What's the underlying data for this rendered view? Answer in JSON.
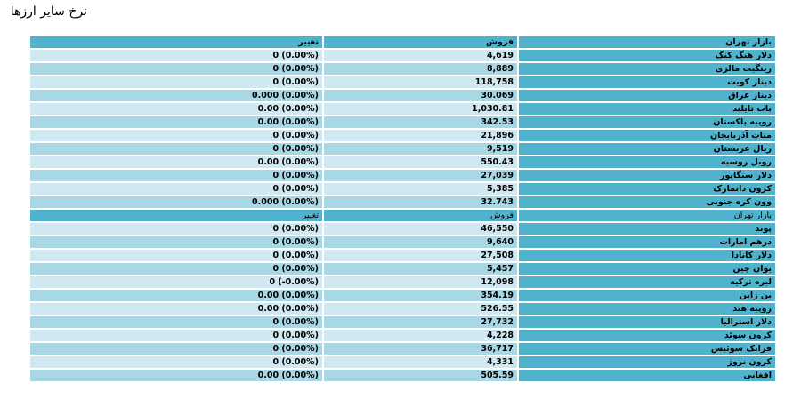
{
  "page": {
    "title": "نرخ سایر ارزها"
  },
  "table": {
    "headers": {
      "change": "تغییر",
      "sell": "فروش",
      "market": "بازار تهران"
    },
    "group1": [
      {
        "name": "دلار هنگ کنگ",
        "sell": "4,619",
        "change": "0 (0.00%)"
      },
      {
        "name": "رینگیت مالزی",
        "sell": "8,889",
        "change": "0 (0.00%)"
      },
      {
        "name": "دینار کویت",
        "sell": "118,758",
        "change": "0 (0.00%)"
      },
      {
        "name": "دینار عراق",
        "sell": "30.069",
        "change": "0.000 (0.00%)"
      },
      {
        "name": "بات تایلند",
        "sell": "1,030.81",
        "change": "0.00 (0.00%)"
      },
      {
        "name": "روپیه پاکستان",
        "sell": "342.53",
        "change": "0.00 (0.00%)"
      },
      {
        "name": "منات آذربایجان",
        "sell": "21,896",
        "change": "0 (0.00%)"
      },
      {
        "name": "ریال عربستان",
        "sell": "9,519",
        "change": "0 (0.00%)"
      },
      {
        "name": "روبل روسیه",
        "sell": "550.43",
        "change": "0.00 (0.00%)"
      },
      {
        "name": "دلار سنگاپور",
        "sell": "27,039",
        "change": "0 (0.00%)"
      },
      {
        "name": "کرون دانمارک",
        "sell": "5,385",
        "change": "0 (0.00%)"
      },
      {
        "name": "وون کره جنوبی",
        "sell": "32.743",
        "change": "0.000 (0.00%)"
      }
    ],
    "subheader": {
      "change": "تغییر",
      "sell": "فروش",
      "market": "بازار تهران"
    },
    "group2": [
      {
        "name": "پوند",
        "sell": "46,550",
        "change": "0 (0.00%)"
      },
      {
        "name": "درهم امارات",
        "sell": "9,640",
        "change": "0 (0.00%)"
      },
      {
        "name": "دلار کانادا",
        "sell": "27,508",
        "change": "0 (0.00%)"
      },
      {
        "name": "یوان چین",
        "sell": "5,457",
        "change": "0 (0.00%)"
      },
      {
        "name": "لیره ترکیه",
        "sell": "12,098",
        "change": "0 (-0.00%)"
      },
      {
        "name": "ین ژاپن",
        "sell": "354.19",
        "change": "0.00 (0.00%)"
      },
      {
        "name": "روپیه هند",
        "sell": "526.55",
        "change": "0.00 (0.00%)"
      },
      {
        "name": "دلار استرالیا",
        "sell": "27,732",
        "change": "0 (0.00%)"
      },
      {
        "name": "کرون سوئد",
        "sell": "4,228",
        "change": "0 (0.00%)"
      },
      {
        "name": "فرانک سوئیس",
        "sell": "36,717",
        "change": "0 (0.00%)"
      },
      {
        "name": "کرون نروژ",
        "sell": "4,331",
        "change": "0 (0.00%)"
      },
      {
        "name": "افغانی",
        "sell": "505.59",
        "change": "0.00 (0.00%)"
      }
    ]
  }
}
